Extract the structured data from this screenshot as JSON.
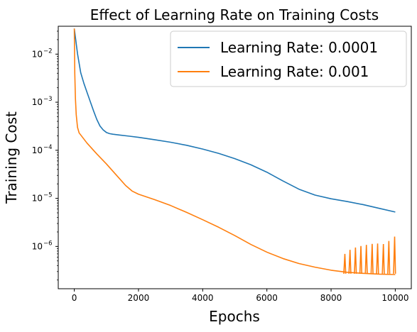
{
  "chart_data": {
    "type": "line",
    "title": "Effect of Learning Rate on Training Costs",
    "xlabel": "Epochs",
    "ylabel": "Training Cost",
    "xlim": [
      -500,
      10500
    ],
    "ylim_log10": [
      -6.88,
      -1.42
    ],
    "yscale": "log",
    "grid": false,
    "legend_position": "top-right",
    "x_ticks": [
      {
        "value": 0,
        "label": "0"
      },
      {
        "value": 2000,
        "label": "2000"
      },
      {
        "value": 4000,
        "label": "4000"
      },
      {
        "value": 6000,
        "label": "6000"
      },
      {
        "value": 8000,
        "label": "8000"
      },
      {
        "value": 10000,
        "label": "10000"
      }
    ],
    "y_ticks": [
      {
        "exp": -2,
        "base": "10",
        "sup": "−2"
      },
      {
        "exp": -3,
        "base": "10",
        "sup": "−3"
      },
      {
        "exp": -4,
        "base": "10",
        "sup": "−4"
      },
      {
        "exp": -5,
        "base": "10",
        "sup": "−5"
      },
      {
        "exp": -6,
        "base": "10",
        "sup": "−6"
      }
    ],
    "series": [
      {
        "name": "Learning Rate: 0.0001",
        "color": "#1f77b4",
        "x": [
          0,
          100,
          200,
          300,
          400,
          500,
          600,
          700,
          800,
          900,
          1000,
          1100,
          1200,
          1400,
          1700,
          2000,
          2500,
          3000,
          3500,
          4000,
          4500,
          5000,
          5500,
          6000,
          6500,
          7000,
          7500,
          8000,
          8500,
          9000,
          9500,
          10000
        ],
        "y": [
          0.034,
          0.0102,
          0.0041,
          0.00245,
          0.00158,
          0.00102,
          0.00066,
          0.00044,
          0.00032,
          0.000265,
          0.000235,
          0.000222,
          0.000216,
          0.000208,
          0.000197,
          0.000186,
          0.000166,
          0.000147,
          0.000127,
          0.000106,
          8.6e-05,
          6.7e-05,
          5e-05,
          3.5e-05,
          2.3e-05,
          1.55e-05,
          1.17e-05,
          9.8e-06,
          8.6e-06,
          7.4e-06,
          6.2e-06,
          5.2e-06
        ]
      },
      {
        "name": "Learning Rate: 0.001",
        "color": "#ff7f0e",
        "x": [
          0,
          15,
          35,
          60,
          100,
          150,
          400,
          700,
          1000,
          1300,
          1600,
          1800,
          2000,
          2500,
          3000,
          3500,
          4000,
          4500,
          5000,
          5500,
          6000,
          6500,
          7000,
          7500,
          8000,
          8500,
          9000,
          9500,
          10000
        ],
        "y": [
          0.034,
          0.004,
          0.0012,
          0.00055,
          0.0003,
          0.00023,
          0.00014,
          8.4e-05,
          5.2e-05,
          3.1e-05,
          1.85e-05,
          1.42e-05,
          1.22e-05,
          9.4e-06,
          7.1e-06,
          5.1e-06,
          3.6e-06,
          2.5e-06,
          1.68e-06,
          1.1e-06,
          7.6e-07,
          5.6e-07,
          4.4e-07,
          3.7e-07,
          3.2e-07,
          2.9e-07,
          2.75e-07,
          2.65e-07,
          2.6e-07
        ],
        "spikes": [
          {
            "x": 8430,
            "y": 7e-07
          },
          {
            "x": 8590,
            "y": 8.5e-07
          },
          {
            "x": 8760,
            "y": 9.5e-07
          },
          {
            "x": 8930,
            "y": 1.02e-06
          },
          {
            "x": 9100,
            "y": 1.08e-06
          },
          {
            "x": 9280,
            "y": 1.13e-06
          },
          {
            "x": 9450,
            "y": 1.15e-06
          },
          {
            "x": 9630,
            "y": 1.12e-06
          },
          {
            "x": 9800,
            "y": 1.3e-06
          },
          {
            "x": 9980,
            "y": 1.6e-06
          }
        ]
      }
    ]
  }
}
